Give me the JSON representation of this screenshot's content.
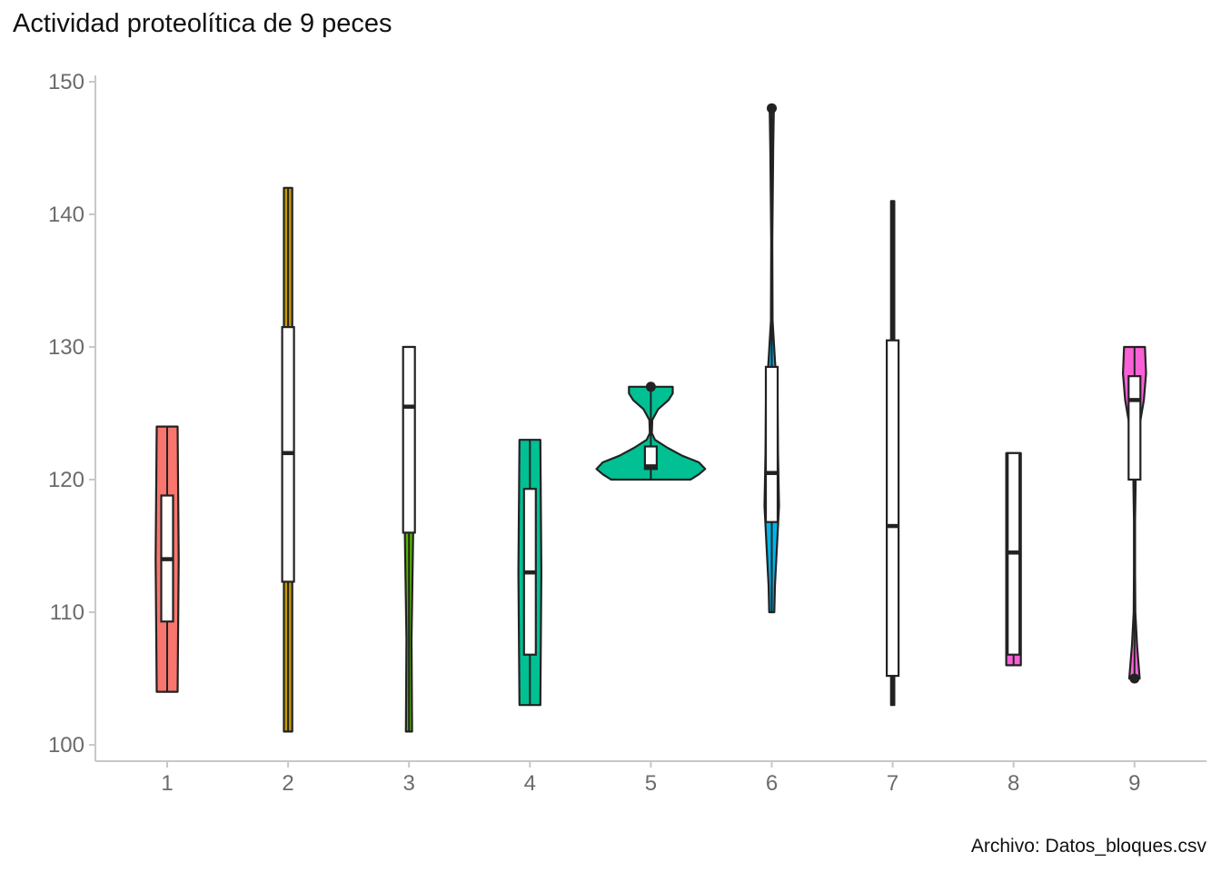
{
  "chart_data": {
    "type": "violin",
    "title": "Actividad proteolítica de 9 peces",
    "caption": "Archivo: Datos_bloques.csv",
    "xlabel": "",
    "ylabel": "",
    "ylim": [
      99,
      150.5
    ],
    "yticks": [
      100,
      110,
      120,
      130,
      140,
      150
    ],
    "categories": [
      "1",
      "2",
      "3",
      "4",
      "5",
      "6",
      "7",
      "8",
      "9"
    ],
    "grid": false,
    "legend": "none",
    "series": [
      {
        "colour": "#F8766D",
        "min": 104,
        "max": 124,
        "q1": 109.3,
        "median": 114,
        "q3": 118.8,
        "outliers": [],
        "density": [
          [
            104,
            0.5
          ],
          [
            114,
            0.55
          ],
          [
            124,
            0.5
          ]
        ]
      },
      {
        "colour": "#C49A00",
        "min": 101,
        "max": 142,
        "q1": 112.3,
        "median": 122,
        "q3": 131.5,
        "outliers": [],
        "density": [
          [
            101,
            0.2
          ],
          [
            142,
            0.2
          ]
        ]
      },
      {
        "colour": "#53B400",
        "min": 101,
        "max": 130,
        "q1": 116,
        "median": 125.5,
        "q3": 130,
        "outliers": [],
        "density": [
          [
            101,
            0.15
          ],
          [
            108,
            0.12
          ],
          [
            116,
            0.2
          ],
          [
            130,
            0.25
          ]
        ]
      },
      {
        "colour": "#00C094",
        "min": 103,
        "max": 123,
        "q1": 106.8,
        "median": 113,
        "q3": 119.3,
        "outliers": [],
        "density": [
          [
            103,
            0.5
          ],
          [
            113,
            0.55
          ],
          [
            123,
            0.5
          ]
        ]
      },
      {
        "colour": "#00C094",
        "min": 120,
        "max": 127,
        "q1": 120.8,
        "median": 121,
        "q3": 122.5,
        "outliers": [
          127
        ],
        "density": [
          [
            120,
            1.9
          ],
          [
            120.4,
            2.3
          ],
          [
            120.8,
            2.6
          ],
          [
            121.3,
            2.3
          ],
          [
            121.8,
            1.5
          ],
          [
            122.4,
            0.8
          ],
          [
            123,
            0.2
          ],
          [
            123.5,
            0.05
          ],
          [
            124.5,
            0.07
          ],
          [
            125.3,
            0.35
          ],
          [
            126,
            0.85
          ],
          [
            126.5,
            1.05
          ],
          [
            127,
            1.05
          ]
        ]
      },
      {
        "colour": "#00B6EB",
        "min": 110,
        "max": 148,
        "q1": 116.8,
        "median": 120.5,
        "q3": 128.5,
        "outliers": [
          148
        ],
        "density": [
          [
            110,
            0.12
          ],
          [
            112,
            0.15
          ],
          [
            118,
            0.35
          ],
          [
            122,
            0.3
          ],
          [
            126,
            0.28
          ],
          [
            129,
            0.15
          ],
          [
            132,
            0.04
          ],
          [
            138,
            0.02
          ],
          [
            145,
            0.07
          ],
          [
            148,
            0.1
          ]
        ]
      },
      {
        "colour": "#A58AFF",
        "min": 103,
        "max": 141,
        "q1": 105.2,
        "median": 116.5,
        "q3": 130.5,
        "outliers": [],
        "density": [
          [
            103,
            0.08
          ],
          [
            141,
            0.08
          ]
        ]
      },
      {
        "colour": "#FB61D7",
        "min": 106,
        "max": 122,
        "q1": 106.8,
        "median": 114.5,
        "q3": 122,
        "outliers": [],
        "density": [
          [
            106,
            0.35
          ],
          [
            122,
            0.35
          ]
        ]
      },
      {
        "colour": "#FB61D7",
        "min": 105,
        "max": 130,
        "q1": 120,
        "median": 126,
        "q3": 127.8,
        "outliers": [
          105
        ],
        "density": [
          [
            105,
            0.25
          ],
          [
            107.5,
            0.12
          ],
          [
            110,
            0.04
          ],
          [
            113,
            0.01
          ],
          [
            117,
            0.02
          ],
          [
            119.5,
            0.05
          ],
          [
            121.5,
            0.05
          ],
          [
            123.5,
            0.18
          ],
          [
            126,
            0.45
          ],
          [
            128,
            0.55
          ],
          [
            130,
            0.5
          ]
        ]
      }
    ]
  }
}
